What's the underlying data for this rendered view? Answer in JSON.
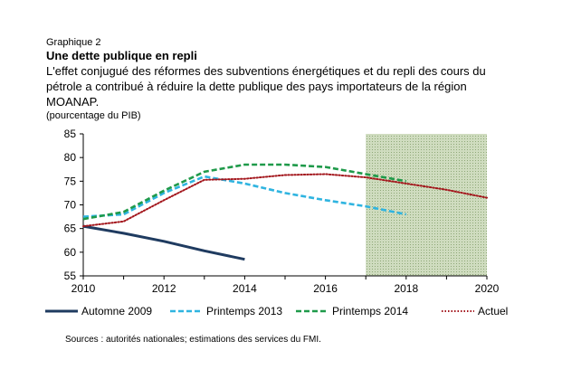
{
  "header": {
    "eyebrow": "Graphique 2",
    "title": "Une dette publique en repli",
    "subtitle": "L'effet conjugué des réformes des subventions énergétiques et du repli des cours du pétrole a contribué à réduire la dette publique des pays importateurs de la région MOANAP.",
    "unit": "(pourcentage du PIB)"
  },
  "source": "Sources : autorités nationales; estimations des services du FMI.",
  "chart_data": {
    "type": "line",
    "xlim": [
      2010,
      2020
    ],
    "ylim": [
      55,
      85
    ],
    "xticks": [
      2010,
      2012,
      2014,
      2016,
      2018,
      2020
    ],
    "yticks": [
      55,
      60,
      65,
      70,
      75,
      80,
      85
    ],
    "shaded_region": {
      "from": 2017,
      "to": 2020,
      "color": "#cfdcbf"
    },
    "legend_position": "bottom",
    "series": [
      {
        "name": "Automne 2009",
        "color": "#1f3b60",
        "style": "solid",
        "x": [
          2010,
          2011,
          2012,
          2013,
          2014
        ],
        "y": [
          65.5,
          64.0,
          62.3,
          60.3,
          58.5
        ]
      },
      {
        "name": "Printemps 2013",
        "color": "#2fb4e0",
        "style": "dashed",
        "x": [
          2010,
          2011,
          2012,
          2013,
          2014,
          2015,
          2016,
          2017,
          2018
        ],
        "y": [
          67.5,
          68.0,
          72.5,
          76.0,
          74.5,
          72.5,
          71.0,
          69.7,
          68.0
        ]
      },
      {
        "name": "Printemps 2014",
        "color": "#1f9a4a",
        "style": "dashed",
        "x": [
          2010,
          2011,
          2012,
          2013,
          2014,
          2015,
          2016,
          2017,
          2018
        ],
        "y": [
          67.0,
          68.5,
          73.0,
          77.0,
          78.5,
          78.5,
          78.0,
          76.5,
          75.0
        ]
      },
      {
        "name": "Actuel",
        "color": "#a3161c",
        "style": "dotted",
        "x": [
          2010,
          2011,
          2012,
          2013,
          2014,
          2015,
          2016,
          2017,
          2018,
          2019,
          2020
        ],
        "y": [
          65.5,
          66.5,
          71.0,
          75.3,
          75.5,
          76.3,
          76.5,
          75.8,
          74.5,
          73.2,
          71.5
        ]
      }
    ]
  }
}
